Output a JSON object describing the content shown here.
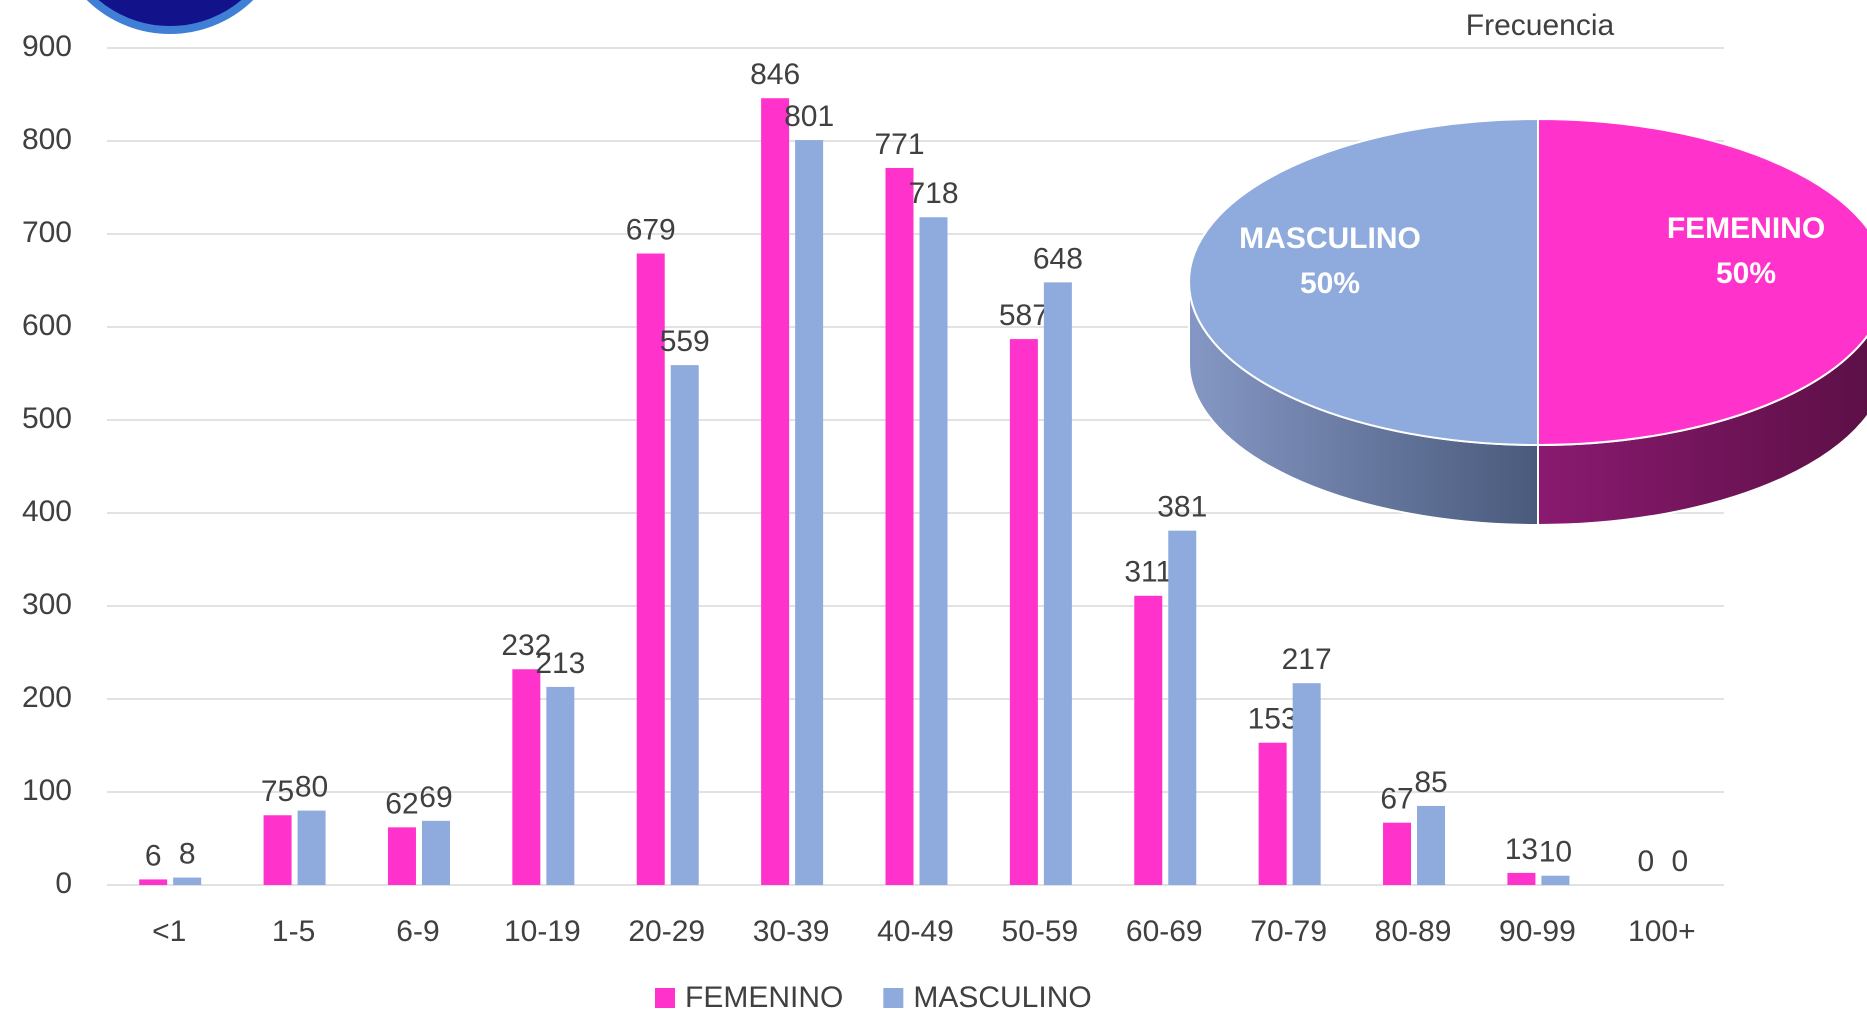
{
  "chart_data": [
    {
      "type": "bar",
      "categories": [
        "<1",
        "1-5",
        "6-9",
        "10-19",
        "20-29",
        "30-39",
        "40-49",
        "50-59",
        "60-69",
        "70-79",
        "80-89",
        "90-99",
        "100+"
      ],
      "series": [
        {
          "name": "FEMENINO",
          "color": "#ff33cc",
          "values": [
            6,
            75,
            62,
            232,
            679,
            846,
            771,
            587,
            311,
            153,
            67,
            13,
            0
          ]
        },
        {
          "name": "MASCULINO",
          "color": "#8faadc",
          "values": [
            8,
            80,
            69,
            213,
            559,
            801,
            718,
            648,
            381,
            217,
            85,
            10,
            0
          ]
        }
      ],
      "ylim": [
        0,
        900
      ],
      "yticks": [
        0,
        100,
        200,
        300,
        400,
        500,
        600,
        700,
        800,
        900
      ],
      "grid": true,
      "legend": "bottom"
    },
    {
      "type": "pie",
      "title": "Frecuencia",
      "categories": [
        "FEMENINO",
        "MASCULINO"
      ],
      "values": [
        50,
        50
      ],
      "value_labels": [
        "50%",
        "50%"
      ],
      "colors": [
        "#ff33cc",
        "#8faadc"
      ]
    }
  ]
}
